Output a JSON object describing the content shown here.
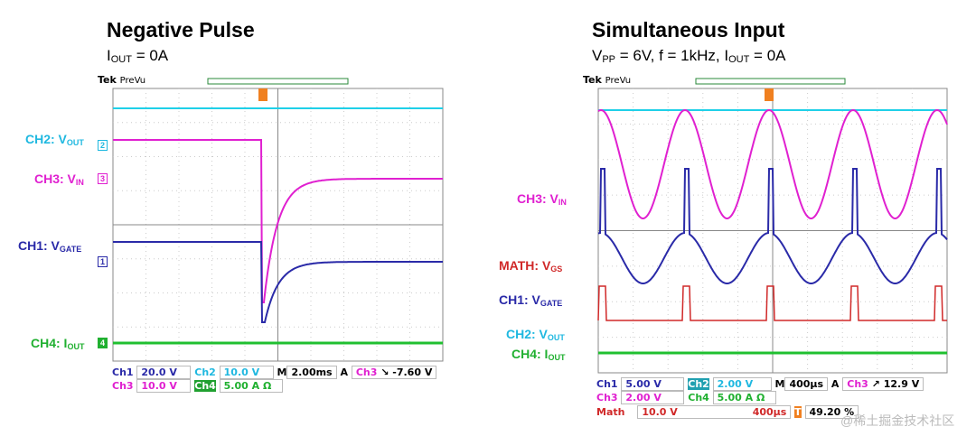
{
  "left": {
    "title": "Negative Pulse",
    "subtitle": {
      "i": "I",
      "sub": "OUT",
      "rest": " = 0A"
    },
    "tek": "Tek",
    "prevu": "PreVu",
    "labels": [
      {
        "ch": "CH2: V",
        "sub": "OUT",
        "color": "#1fb8e0",
        "marker": "2"
      },
      {
        "ch": "CH3: V",
        "sub": "IN",
        "color": "#e020d0",
        "marker": "3"
      },
      {
        "ch": "CH1: V",
        "sub": "GATE",
        "color": "#2a2aa8",
        "marker": "1"
      },
      {
        "ch": "CH4: I",
        "sub": "OUT",
        "color": "#20b030",
        "marker": "4"
      }
    ],
    "status": {
      "ch1": "Ch1",
      "ch1v": "20.0 V",
      "ch2": "Ch2",
      "ch2v": "10.0 V",
      "m": "M",
      "time": "2.00ms",
      "a": "A",
      "trig_ch": "Ch3",
      "trig_slope": "↘",
      "trig_v": "-7.60 V",
      "ch3": "Ch3",
      "ch3v": "10.0 V",
      "ch4": "Ch4",
      "ch4v": "5.00 A Ω"
    }
  },
  "right": {
    "title": "Simultaneous Input",
    "subtitle": {
      "v": "V",
      "vsub": "PP",
      "mid": " = 6V, f = 1kHz, I",
      "isub": "OUT",
      "rest": " = 0A"
    },
    "tek": "Tek",
    "prevu": "PreVu",
    "labels": [
      {
        "ch": "CH3: V",
        "sub": "IN",
        "color": "#e020d0"
      },
      {
        "ch": "MATH: V",
        "sub": "GS",
        "color": "#d02828"
      },
      {
        "ch": "CH1: V",
        "sub": "GATE",
        "color": "#2a2aa8"
      },
      {
        "ch": "CH2: V",
        "sub": "OUT",
        "color": "#1fb8e0"
      },
      {
        "ch": "CH4: I",
        "sub": "OUT",
        "color": "#20b030"
      }
    ],
    "status": {
      "ch1": "Ch1",
      "ch1v": "5.00 V",
      "ch2": "Ch2",
      "ch2v": "2.00 V",
      "m": "M",
      "time": "400µs",
      "a": "A",
      "trig_ch": "Ch3",
      "trig_slope": "↗",
      "trig_v": "12.9 V",
      "ch3": "Ch3",
      "ch3v": "2.00 V",
      "ch4": "Ch4",
      "ch4v": "5.00 A Ω",
      "math": "Math",
      "mathv": "10.0 V",
      "matht": "400µs",
      "trig_pos": "49.20 %"
    }
  },
  "watermark": "@稀土掘金技术社区"
}
